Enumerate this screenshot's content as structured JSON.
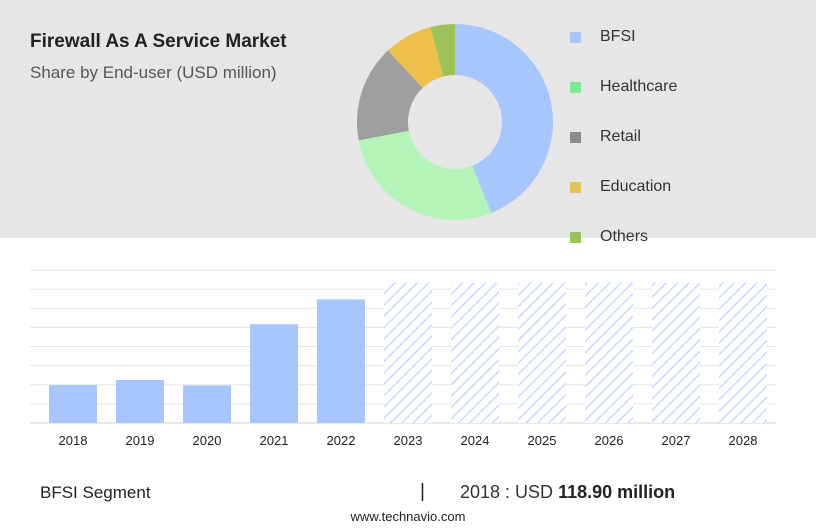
{
  "header": {
    "title": "Firewall As A Service Market",
    "subtitle": "Share by End-user (USD million)"
  },
  "chart_data": [
    {
      "type": "pie",
      "variant": "donut",
      "categories": [
        "BFSI",
        "Healthcare",
        "Retail",
        "Education",
        "Others"
      ],
      "values": [
        44,
        28,
        16,
        8,
        4
      ],
      "colors": [
        "#a7c6fe",
        "#b3f5b8",
        "#9e9e9e",
        "#ecc04a",
        "#9dc25a"
      ],
      "legend": {
        "placement": "right",
        "items": [
          {
            "label": "BFSI",
            "color": "#a7c6fe"
          },
          {
            "label": "Healthcare",
            "color": "#7ee898"
          },
          {
            "label": "Retail",
            "color": "#8c8c8c"
          },
          {
            "label": "Education",
            "color": "#e8c05a"
          },
          {
            "label": "Others",
            "color": "#9dc25a"
          }
        ]
      }
    },
    {
      "type": "bar",
      "categories": [
        "2018",
        "2019",
        "2020",
        "2021",
        "2022",
        "2023",
        "2024",
        "2025",
        "2026",
        "2027",
        "2028"
      ],
      "values": [
        118.9,
        135,
        118,
        310,
        388,
        440,
        440,
        440,
        440,
        440,
        440
      ],
      "forecast_from": "2023",
      "ylim": [
        0,
        480
      ],
      "grid": true,
      "bar_color": "#a7c6fe",
      "forecast_color": "#c8d8fe"
    }
  ],
  "footer": {
    "segment_label": "BFSI Segment",
    "divider": "|",
    "value_prefix": "2018 : USD",
    "value_amount": "118.90 million",
    "website": "www.technavio.com"
  }
}
